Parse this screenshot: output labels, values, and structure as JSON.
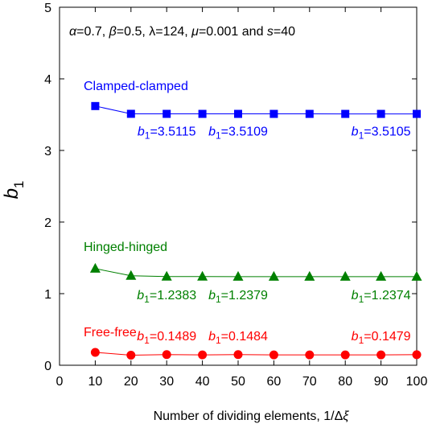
{
  "chart_data": {
    "type": "line",
    "parameter_text": {
      "alpha_sym": "α",
      "alpha_val": "=0.7, ",
      "beta_sym": "β",
      "beta_val": "=0.5, ",
      "lambda_sym": "λ",
      "lambda_val": "=124, ",
      "mu_sym": "μ",
      "mu_val": "=0.001 and ",
      "s_sym": "s",
      "s_val": "=40"
    },
    "xlabel": {
      "text": "Number of dividing elements, 1/Δ",
      "symbol": "ξ"
    },
    "ylabel": {
      "main": "b",
      "sub": "1"
    },
    "xlim": [
      0,
      100
    ],
    "ylim": [
      0,
      5
    ],
    "x_ticks": [
      0,
      10,
      20,
      30,
      40,
      50,
      60,
      70,
      80,
      90,
      100
    ],
    "y_ticks": [
      0,
      1,
      2,
      3,
      4,
      5
    ],
    "grid": false,
    "x": [
      10,
      20,
      30,
      40,
      50,
      60,
      70,
      80,
      90,
      100
    ],
    "series": [
      {
        "name": "Clamped-clamped",
        "marker": "square",
        "color": "#0000ff",
        "values": [
          3.62,
          3.5115,
          3.5109,
          3.5107,
          3.5107,
          3.5106,
          3.5106,
          3.5105,
          3.5105,
          3.5105
        ],
        "annotations": [
          {
            "prefix": "b",
            "sub": "1",
            "value": "=3.5115"
          },
          {
            "prefix": "b",
            "sub": "1",
            "value": "=3.5109"
          },
          {
            "prefix": "b",
            "sub": "1",
            "value": "=3.5105"
          }
        ]
      },
      {
        "name": "Hinged-hinged",
        "marker": "triangle",
        "color": "#008000",
        "values": [
          1.35,
          1.25,
          1.2383,
          1.2381,
          1.2379,
          1.2378,
          1.2376,
          1.2375,
          1.2374,
          1.2374
        ],
        "annotations": [
          {
            "prefix": "b",
            "sub": "1",
            "value": "=1.2383"
          },
          {
            "prefix": "b",
            "sub": "1",
            "value": "=1.2379"
          },
          {
            "prefix": "b",
            "sub": "1",
            "value": "=1.2374"
          }
        ]
      },
      {
        "name": "Free-free",
        "marker": "circle",
        "color": "#ff0000",
        "values": [
          0.18,
          0.14,
          0.1489,
          0.145,
          0.1484,
          0.145,
          0.145,
          0.145,
          0.145,
          0.1479
        ],
        "annotations": [
          {
            "prefix": "b",
            "sub": "1",
            "value": "=0.1489"
          },
          {
            "prefix": "b",
            "sub": "1",
            "value": "=0.1484"
          },
          {
            "prefix": "b",
            "sub": "1",
            "value": "=0.1479"
          }
        ]
      }
    ]
  }
}
